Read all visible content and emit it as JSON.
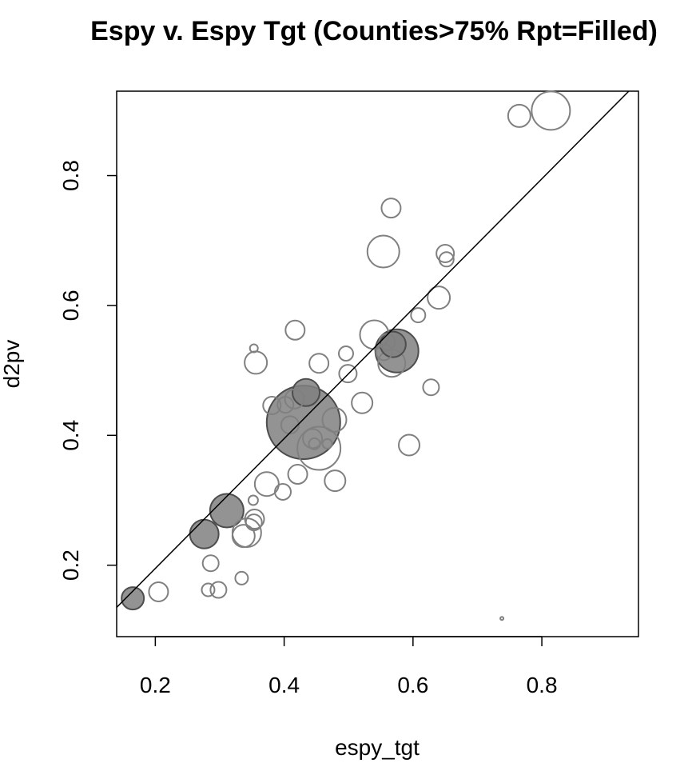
{
  "chart_data": {
    "type": "scatter",
    "title": "Espy v. Espy Tgt (Counties>75% Rpt=Filled)",
    "xlabel": "espy_tgt",
    "ylabel": "d2pv",
    "xlim": [
      0.14,
      0.95
    ],
    "ylim": [
      0.09,
      0.93
    ],
    "x_ticks": [
      0.2,
      0.4,
      0.6,
      0.8
    ],
    "y_ticks": [
      0.2,
      0.4,
      0.6,
      0.8
    ],
    "x_tick_labels": [
      "0.2",
      "0.4",
      "0.6",
      "0.8"
    ],
    "y_tick_labels": [
      "0.2",
      "0.4",
      "0.6",
      "0.8"
    ],
    "grid": false,
    "legend": "none",
    "reference_line": {
      "x": [
        0.14,
        0.935
      ],
      "y": [
        0.135,
        0.93
      ]
    },
    "marker_note": "bubble size proportional to a weight; filled = Rpt > 75%",
    "colors": {
      "hollow_stroke": "#808080",
      "filled": "#808080",
      "filled_stroke": "#4d4d4d",
      "line": "#000000"
    },
    "points": [
      {
        "x": 0.814,
        "y": 0.9,
        "size": 24,
        "filled": false
      },
      {
        "x": 0.765,
        "y": 0.892,
        "size": 14,
        "filled": false
      },
      {
        "x": 0.566,
        "y": 0.75,
        "size": 12,
        "filled": false
      },
      {
        "x": 0.554,
        "y": 0.683,
        "size": 20,
        "filled": false
      },
      {
        "x": 0.65,
        "y": 0.68,
        "size": 11,
        "filled": false
      },
      {
        "x": 0.652,
        "y": 0.671,
        "size": 9,
        "filled": false
      },
      {
        "x": 0.64,
        "y": 0.612,
        "size": 14,
        "filled": false
      },
      {
        "x": 0.608,
        "y": 0.585,
        "size": 9,
        "filled": false
      },
      {
        "x": 0.417,
        "y": 0.562,
        "size": 12,
        "filled": false
      },
      {
        "x": 0.54,
        "y": 0.555,
        "size": 18,
        "filled": false
      },
      {
        "x": 0.569,
        "y": 0.54,
        "size": 16,
        "filled": true
      },
      {
        "x": 0.56,
        "y": 0.544,
        "size": 10,
        "filled": false
      },
      {
        "x": 0.575,
        "y": 0.53,
        "size": 27,
        "filled": true
      },
      {
        "x": 0.555,
        "y": 0.528,
        "size": 10,
        "filled": false
      },
      {
        "x": 0.353,
        "y": 0.534,
        "size": 5,
        "filled": false
      },
      {
        "x": 0.496,
        "y": 0.526,
        "size": 9,
        "filled": false
      },
      {
        "x": 0.356,
        "y": 0.512,
        "size": 14,
        "filled": false
      },
      {
        "x": 0.454,
        "y": 0.511,
        "size": 12,
        "filled": false
      },
      {
        "x": 0.567,
        "y": 0.511,
        "size": 17,
        "filled": false
      },
      {
        "x": 0.499,
        "y": 0.495,
        "size": 11,
        "filled": false
      },
      {
        "x": 0.628,
        "y": 0.474,
        "size": 10,
        "filled": false
      },
      {
        "x": 0.434,
        "y": 0.466,
        "size": 17,
        "filled": true
      },
      {
        "x": 0.416,
        "y": 0.456,
        "size": 12,
        "filled": false
      },
      {
        "x": 0.402,
        "y": 0.447,
        "size": 10,
        "filled": false
      },
      {
        "x": 0.381,
        "y": 0.446,
        "size": 11,
        "filled": false
      },
      {
        "x": 0.521,
        "y": 0.45,
        "size": 13,
        "filled": false
      },
      {
        "x": 0.478,
        "y": 0.424,
        "size": 15,
        "filled": false
      },
      {
        "x": 0.43,
        "y": 0.42,
        "size": 46,
        "filled": true
      },
      {
        "x": 0.409,
        "y": 0.416,
        "size": 11,
        "filled": false
      },
      {
        "x": 0.444,
        "y": 0.395,
        "size": 12,
        "filled": false
      },
      {
        "x": 0.454,
        "y": 0.38,
        "size": 27,
        "filled": false
      },
      {
        "x": 0.447,
        "y": 0.387,
        "size": 7,
        "filled": false
      },
      {
        "x": 0.467,
        "y": 0.387,
        "size": 6,
        "filled": false
      },
      {
        "x": 0.594,
        "y": 0.385,
        "size": 13,
        "filled": false
      },
      {
        "x": 0.421,
        "y": 0.34,
        "size": 12,
        "filled": false
      },
      {
        "x": 0.479,
        "y": 0.33,
        "size": 13,
        "filled": false
      },
      {
        "x": 0.373,
        "y": 0.325,
        "size": 15,
        "filled": false
      },
      {
        "x": 0.398,
        "y": 0.313,
        "size": 10,
        "filled": false
      },
      {
        "x": 0.352,
        "y": 0.3,
        "size": 6,
        "filled": false
      },
      {
        "x": 0.311,
        "y": 0.284,
        "size": 21,
        "filled": true
      },
      {
        "x": 0.354,
        "y": 0.271,
        "size": 12,
        "filled": false
      },
      {
        "x": 0.353,
        "y": 0.266,
        "size": 10,
        "filled": false
      },
      {
        "x": 0.342,
        "y": 0.25,
        "size": 18,
        "filled": false
      },
      {
        "x": 0.337,
        "y": 0.245,
        "size": 14,
        "filled": false
      },
      {
        "x": 0.276,
        "y": 0.248,
        "size": 18,
        "filled": true
      },
      {
        "x": 0.286,
        "y": 0.203,
        "size": 10,
        "filled": false
      },
      {
        "x": 0.334,
        "y": 0.18,
        "size": 8,
        "filled": false
      },
      {
        "x": 0.205,
        "y": 0.159,
        "size": 12,
        "filled": false
      },
      {
        "x": 0.282,
        "y": 0.162,
        "size": 8,
        "filled": false
      },
      {
        "x": 0.298,
        "y": 0.162,
        "size": 10,
        "filled": false
      },
      {
        "x": 0.165,
        "y": 0.149,
        "size": 14,
        "filled": true
      },
      {
        "x": 0.738,
        "y": 0.118,
        "size": 2,
        "filled": false
      }
    ]
  }
}
